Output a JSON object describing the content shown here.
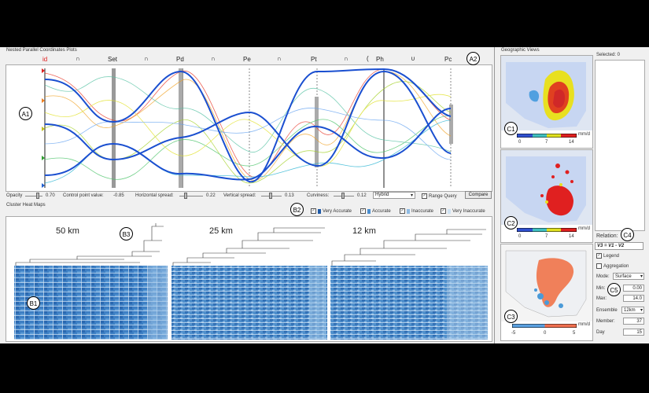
{
  "nested_pcp": {
    "title": "Nested Parallel Coordinates Plots",
    "axes": [
      "id",
      "Set",
      "Pd",
      "Pe",
      "Pt",
      "Ph",
      "Pc"
    ],
    "set_ops": [
      "∩",
      "∩",
      "∩",
      "∩",
      "(",
      "∪"
    ],
    "colors": {
      "id_axis": "#e02020",
      "accent_blue": "#1a4fd0"
    }
  },
  "controls": {
    "opacity_label": "Opacity",
    "opacity_value": "0.70",
    "control_point_label": "Control point value:",
    "control_point_value": "-0.85",
    "hspread_label": "Horizontal spread:",
    "hspread_value": "0.22",
    "vspread_label": "Vertical spread:",
    "vspread_value": "0.13",
    "curviness_label": "Curviness:",
    "curviness_value": "0.12",
    "mode_select": "Hybrid",
    "range_query_label": "Range Query",
    "compare_button": "Compare"
  },
  "heatmaps": {
    "title": "Cluster Heat Maps",
    "legend": [
      {
        "label": "Very Accurate",
        "color": "#1f5aa8"
      },
      {
        "label": "Accurate",
        "color": "#4b8fd0"
      },
      {
        "label": "Inaccurate",
        "color": "#8fbbe3"
      },
      {
        "label": "Very Inaccurate",
        "color": "#cfe2f3"
      }
    ],
    "resolutions": [
      "50 km",
      "25 km",
      "12 km"
    ]
  },
  "geo": {
    "title": "Geographic Views",
    "maps": [
      {
        "ticks": [
          "0",
          "7",
          "14"
        ],
        "unit": "mm/d"
      },
      {
        "ticks": [
          "0",
          "7",
          "14"
        ],
        "unit": "mm/d"
      },
      {
        "ticks": [
          "-5",
          "0",
          "5"
        ],
        "unit": "mm/d"
      }
    ]
  },
  "side": {
    "selected_label": "Selected: 0",
    "relation_label": "Relation:",
    "relation_value": "V3 = V1 - V2",
    "legend_label": "Legend",
    "aggregation_label": "Aggregation",
    "mode_label": "Mode:",
    "mode_value": "Surface",
    "min_label": "Min:",
    "min_value": "0.00",
    "max_label": "Max:",
    "max_value": "14.0",
    "ensemble_label": "Ensemble",
    "ensemble_value": "12km",
    "member_label": "Member:",
    "member_value": "37",
    "day_label": "Day",
    "day_value": "15"
  },
  "callouts": [
    "A1",
    "A2",
    "B1",
    "B2",
    "B3",
    "C1",
    "C2",
    "C3",
    "C4",
    "C5"
  ]
}
